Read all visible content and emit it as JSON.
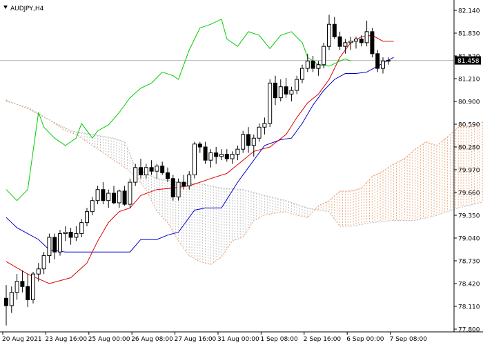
{
  "chart_data": {
    "type": "candlestick",
    "title": "AUDJPY,H4",
    "symbol": "AUDJPY",
    "timeframe": "H4",
    "current_price": "81.458",
    "y_ticks": [
      "82.140",
      "81.830",
      "81.520",
      "81.210",
      "80.900",
      "80.590",
      "80.280",
      "79.970",
      "79.660",
      "79.350",
      "79.040",
      "78.730",
      "78.420",
      "78.110",
      "77.800"
    ],
    "x_ticks": [
      "20 Aug 2021",
      "23 Aug 16:00",
      "25 Aug 00:00",
      "26 Aug 08:00",
      "27 Aug 16:00",
      "31 Aug 00:00",
      "1 Sep 08:00",
      "2 Sep 16:00",
      "6 Sep 00:00",
      "7 Sep 08:00"
    ],
    "ylim": [
      77.8,
      82.2
    ],
    "grid": false,
    "colors": {
      "background": "#ffffff",
      "candle": "#000000",
      "tenkan_sen": "#dd0000",
      "kijun_sen": "#0000cc",
      "chikou_span": "#00cc00",
      "senkou_span_a": "#e8a070",
      "senkou_span_b": "#b8b8b8",
      "price_line": "#b8b8b8"
    },
    "candles": [
      [
        78.22,
        78.4,
        77.85,
        78.12
      ],
      [
        78.12,
        78.38,
        78.02,
        78.3
      ],
      [
        78.3,
        78.55,
        78.2,
        78.45
      ],
      [
        78.45,
        78.6,
        78.3,
        78.38
      ],
      [
        78.38,
        78.55,
        78.1,
        78.2
      ],
      [
        78.2,
        78.58,
        78.15,
        78.55
      ],
      [
        78.55,
        78.7,
        78.45,
        78.62
      ],
      [
        78.62,
        78.85,
        78.55,
        78.8
      ],
      [
        78.8,
        79.1,
        78.7,
        79.05
      ],
      [
        79.05,
        79.1,
        78.75,
        78.85
      ],
      [
        78.85,
        79.15,
        78.8,
        79.1
      ],
      [
        79.1,
        79.2,
        79.0,
        79.12
      ],
      [
        79.12,
        79.18,
        78.95,
        79.05
      ],
      [
        79.05,
        79.2,
        79.0,
        79.1
      ],
      [
        79.1,
        79.3,
        79.05,
        79.25
      ],
      [
        79.25,
        79.45,
        79.2,
        79.4
      ],
      [
        79.4,
        79.6,
        79.35,
        79.55
      ],
      [
        79.55,
        79.75,
        79.5,
        79.7
      ],
      [
        79.7,
        79.8,
        79.5,
        79.55
      ],
      [
        79.55,
        79.7,
        79.45,
        79.65
      ],
      [
        79.65,
        79.75,
        79.5,
        79.52
      ],
      [
        79.52,
        79.7,
        79.45,
        79.68
      ],
      [
        79.68,
        79.75,
        79.48,
        79.5
      ],
      [
        79.5,
        79.85,
        79.45,
        79.8
      ],
      [
        79.8,
        80.05,
        79.75,
        80.0
      ],
      [
        80.0,
        80.12,
        79.85,
        79.9
      ],
      [
        79.9,
        80.05,
        79.85,
        80.0
      ],
      [
        80.0,
        80.1,
        79.9,
        79.95
      ],
      [
        79.95,
        80.05,
        79.85,
        80.02
      ],
      [
        80.02,
        80.08,
        79.9,
        79.93
      ],
      [
        79.93,
        80.0,
        79.8,
        79.85
      ],
      [
        79.85,
        79.9,
        79.55,
        79.6
      ],
      [
        79.6,
        79.85,
        79.55,
        79.8
      ],
      [
        79.8,
        79.9,
        79.7,
        79.75
      ],
      [
        79.75,
        79.95,
        79.7,
        79.9
      ],
      [
        79.9,
        80.35,
        79.85,
        80.32
      ],
      [
        80.32,
        80.35,
        80.2,
        80.28
      ],
      [
        80.28,
        80.35,
        80.05,
        80.1
      ],
      [
        80.1,
        80.25,
        80.0,
        80.2
      ],
      [
        80.2,
        80.28,
        80.05,
        80.15
      ],
      [
        80.15,
        80.25,
        80.1,
        80.18
      ],
      [
        80.18,
        80.25,
        80.08,
        80.12
      ],
      [
        80.12,
        80.22,
        80.05,
        80.18
      ],
      [
        80.18,
        80.3,
        80.1,
        80.25
      ],
      [
        80.25,
        80.5,
        80.2,
        80.45
      ],
      [
        80.45,
        80.55,
        80.2,
        80.3
      ],
      [
        80.3,
        80.45,
        80.15,
        80.4
      ],
      [
        80.4,
        80.6,
        80.35,
        80.55
      ],
      [
        80.55,
        80.68,
        80.45,
        80.6
      ],
      [
        80.6,
        81.2,
        80.55,
        81.15
      ],
      [
        81.15,
        81.25,
        80.85,
        80.95
      ],
      [
        80.95,
        81.2,
        80.9,
        81.1
      ],
      [
        81.1,
        81.22,
        80.95,
        81.0
      ],
      [
        81.0,
        81.1,
        80.9,
        81.05
      ],
      [
        81.05,
        81.25,
        81.0,
        81.2
      ],
      [
        81.2,
        81.4,
        81.15,
        81.35
      ],
      [
        81.35,
        81.55,
        81.3,
        81.45
      ],
      [
        81.45,
        81.52,
        81.3,
        81.35
      ],
      [
        81.35,
        81.45,
        81.25,
        81.4
      ],
      [
        81.4,
        81.7,
        81.35,
        81.65
      ],
      [
        81.65,
        82.08,
        81.6,
        81.95
      ],
      [
        81.95,
        82.05,
        81.75,
        81.78
      ],
      [
        81.78,
        81.85,
        81.6,
        81.65
      ],
      [
        81.65,
        81.75,
        81.55,
        81.7
      ],
      [
        81.7,
        81.78,
        81.6,
        81.72
      ],
      [
        81.72,
        81.78,
        81.62,
        81.75
      ],
      [
        81.75,
        81.8,
        81.65,
        81.7
      ],
      [
        81.7,
        82.0,
        81.65,
        81.85
      ],
      [
        81.85,
        81.9,
        81.5,
        81.55
      ],
      [
        81.55,
        81.6,
        81.3,
        81.35
      ],
      [
        81.35,
        81.5,
        81.28,
        81.45
      ],
      [
        81.45,
        81.5,
        81.4,
        81.458
      ]
    ],
    "tenkan_sen": [
      [
        0,
        78.72
      ],
      [
        4,
        78.55
      ],
      [
        8,
        78.42
      ],
      [
        12,
        78.5
      ],
      [
        15,
        78.7
      ],
      [
        17,
        79.0
      ],
      [
        19,
        79.25
      ],
      [
        21,
        79.4
      ],
      [
        23,
        79.45
      ],
      [
        25,
        79.62
      ],
      [
        28,
        79.7
      ],
      [
        31,
        79.72
      ],
      [
        34,
        79.75
      ],
      [
        36,
        79.8
      ],
      [
        38,
        79.85
      ],
      [
        41,
        79.92
      ],
      [
        44,
        80.1
      ],
      [
        46,
        80.22
      ],
      [
        49,
        80.28
      ],
      [
        52,
        80.45
      ],
      [
        54,
        80.68
      ],
      [
        56,
        80.88
      ],
      [
        58,
        81.0
      ],
      [
        60,
        81.2
      ],
      [
        62,
        81.5
      ],
      [
        64,
        81.7
      ],
      [
        66,
        81.78
      ],
      [
        68,
        81.8
      ],
      [
        70,
        81.72
      ],
      [
        72,
        81.72
      ]
    ],
    "kijun_sen": [
      [
        0,
        79.32
      ],
      [
        2,
        79.18
      ],
      [
        4,
        79.1
      ],
      [
        6,
        79.02
      ],
      [
        8,
        78.88
      ],
      [
        11,
        78.85
      ],
      [
        13,
        78.85
      ],
      [
        15,
        78.85
      ],
      [
        17,
        78.85
      ],
      [
        20,
        78.85
      ],
      [
        23,
        78.85
      ],
      [
        25,
        79.02
      ],
      [
        28,
        79.02
      ],
      [
        30,
        79.08
      ],
      [
        32,
        79.12
      ],
      [
        35,
        79.42
      ],
      [
        37,
        79.45
      ],
      [
        40,
        79.45
      ],
      [
        43,
        79.8
      ],
      [
        45,
        80.0
      ],
      [
        48,
        80.3
      ],
      [
        51,
        80.38
      ],
      [
        53,
        80.4
      ],
      [
        55,
        80.6
      ],
      [
        57,
        80.85
      ],
      [
        59,
        81.05
      ],
      [
        61,
        81.2
      ],
      [
        63,
        81.28
      ],
      [
        65,
        81.28
      ],
      [
        67,
        81.3
      ],
      [
        69,
        81.38
      ],
      [
        70,
        81.42
      ],
      [
        72,
        81.5
      ]
    ],
    "chikou_span": [
      [
        0,
        79.7
      ],
      [
        2,
        79.55
      ],
      [
        4,
        79.7
      ],
      [
        6,
        80.75
      ],
      [
        7,
        80.55
      ],
      [
        9,
        80.4
      ],
      [
        11,
        80.3
      ],
      [
        12,
        80.35
      ],
      [
        13,
        80.4
      ],
      [
        14,
        80.6
      ],
      [
        16,
        80.4
      ],
      [
        17,
        80.5
      ],
      [
        19,
        80.58
      ],
      [
        21,
        80.75
      ],
      [
        23,
        80.95
      ],
      [
        25,
        81.08
      ],
      [
        27,
        81.15
      ],
      [
        29,
        81.3
      ],
      [
        31,
        81.25
      ],
      [
        32,
        81.2
      ],
      [
        34,
        81.6
      ],
      [
        36,
        81.9
      ],
      [
        38,
        81.95
      ],
      [
        40,
        82.02
      ],
      [
        41,
        81.75
      ],
      [
        43,
        81.65
      ],
      [
        45,
        81.85
      ],
      [
        47,
        81.8
      ],
      [
        49,
        81.62
      ],
      [
        51,
        81.8
      ],
      [
        53,
        81.85
      ],
      [
        55,
        81.7
      ],
      [
        56,
        81.5
      ],
      [
        58,
        81.4
      ],
      [
        60,
        81.38
      ],
      [
        62,
        81.45
      ],
      [
        63,
        81.48
      ],
      [
        64,
        81.45
      ]
    ],
    "senkou_span_a": [
      [
        0,
        80.92
      ],
      [
        4,
        80.8
      ],
      [
        8,
        80.65
      ],
      [
        11,
        80.5
      ],
      [
        13,
        80.45
      ],
      [
        16,
        80.3
      ],
      [
        19,
        80.15
      ],
      [
        22,
        80.0
      ],
      [
        24,
        79.88
      ],
      [
        26,
        79.7
      ],
      [
        28,
        79.4
      ],
      [
        30,
        79.25
      ],
      [
        32,
        79.0
      ],
      [
        34,
        78.8
      ],
      [
        36,
        78.72
      ],
      [
        38,
        78.68
      ],
      [
        40,
        78.78
      ],
      [
        42,
        79.0
      ],
      [
        44,
        79.05
      ],
      [
        46,
        79.28
      ],
      [
        48,
        79.35
      ],
      [
        50,
        79.38
      ],
      [
        52,
        79.4
      ],
      [
        54,
        79.35
      ],
      [
        56,
        79.32
      ],
      [
        58,
        79.48
      ],
      [
        60,
        79.55
      ],
      [
        62,
        79.68
      ],
      [
        64,
        79.68
      ],
      [
        66,
        79.72
      ],
      [
        68,
        79.88
      ],
      [
        70,
        79.95
      ],
      [
        72,
        80.05
      ],
      [
        74,
        80.12
      ],
      [
        76,
        80.25
      ],
      [
        78,
        80.35
      ],
      [
        80,
        80.3
      ],
      [
        82,
        80.42
      ],
      [
        84,
        80.55
      ],
      [
        86,
        80.55
      ],
      [
        88,
        80.6
      ],
      [
        90,
        80.68
      ],
      [
        91,
        80.68
      ],
      [
        93,
        80.7
      ],
      [
        95,
        80.75
      ],
      [
        97,
        80.78
      ]
    ],
    "senkou_span_b": [
      [
        0,
        80.9
      ],
      [
        4,
        80.82
      ],
      [
        8,
        80.65
      ],
      [
        12,
        80.5
      ],
      [
        16,
        80.45
      ],
      [
        20,
        80.4
      ],
      [
        22,
        80.35
      ],
      [
        24,
        80.0
      ],
      [
        26,
        79.92
      ],
      [
        28,
        79.85
      ],
      [
        32,
        79.8
      ],
      [
        36,
        79.78
      ],
      [
        40,
        79.72
      ],
      [
        44,
        79.7
      ],
      [
        48,
        79.62
      ],
      [
        52,
        79.55
      ],
      [
        56,
        79.45
      ],
      [
        58,
        79.42
      ],
      [
        60,
        79.4
      ],
      [
        62,
        79.2
      ],
      [
        64,
        79.2
      ],
      [
        68,
        79.25
      ],
      [
        72,
        79.28
      ],
      [
        76,
        79.28
      ],
      [
        80,
        79.35
      ],
      [
        84,
        79.45
      ],
      [
        88,
        79.52
      ],
      [
        92,
        79.58
      ],
      [
        95,
        79.62
      ],
      [
        97,
        79.68
      ]
    ]
  }
}
